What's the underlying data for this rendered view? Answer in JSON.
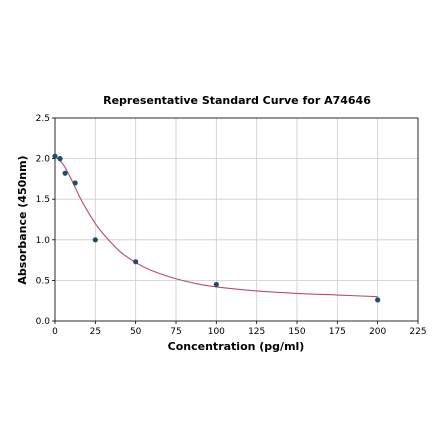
{
  "chart_data": {
    "type": "scatter",
    "title": "Representative Standard Curve for A74646",
    "xlabel": "Concentration (pg/ml)",
    "ylabel": "Absorbance (450nm)",
    "xlim": [
      0,
      225
    ],
    "ylim": [
      0,
      2.5
    ],
    "xticks": [
      0,
      25,
      50,
      75,
      100,
      125,
      150,
      175,
      200,
      225
    ],
    "yticks": [
      0.0,
      0.5,
      1.0,
      1.5,
      2.0,
      2.5
    ],
    "xtick_labels": [
      "0",
      "25",
      "50",
      "75",
      "100",
      "125",
      "150",
      "175",
      "200",
      "225"
    ],
    "ytick_labels": [
      "0.0",
      "0.5",
      "1.0",
      "1.5",
      "2.0",
      "2.5"
    ],
    "grid": true,
    "series": [
      {
        "points": [
          {
            "x": 0,
            "y": 2.03
          },
          {
            "x": 3.125,
            "y": 2.0
          },
          {
            "x": 6.25,
            "y": 1.82
          },
          {
            "x": 12.5,
            "y": 1.7
          },
          {
            "x": 25,
            "y": 1.0
          },
          {
            "x": 50,
            "y": 0.73
          },
          {
            "x": 100,
            "y": 0.45
          },
          {
            "x": 200,
            "y": 0.26
          }
        ]
      }
    ],
    "fit_curve": {
      "x": [
        0,
        5,
        10,
        15,
        20,
        25,
        30,
        40,
        50,
        60,
        75,
        90,
        100,
        125,
        150,
        175,
        200
      ],
      "y": [
        2.03,
        1.93,
        1.75,
        1.54,
        1.36,
        1.2,
        1.07,
        0.86,
        0.72,
        0.62,
        0.52,
        0.45,
        0.42,
        0.37,
        0.34,
        0.32,
        0.3
      ]
    },
    "colors": {
      "marker": "#1f4e6b",
      "curve": "#b84d6e",
      "grid": "#cccccc",
      "axis": "#000000"
    }
  }
}
